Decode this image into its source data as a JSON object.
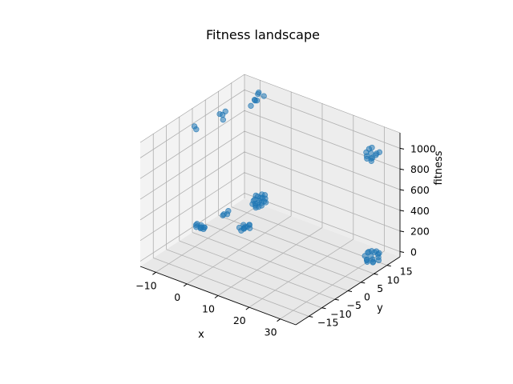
{
  "chart_data": {
    "type": "scatter",
    "title": "Fitness landscape",
    "xlabel": "x",
    "ylabel": "y",
    "zlabel": "fitness",
    "xlim": [
      -15,
      35
    ],
    "ylim": [
      -20,
      20
    ],
    "zlim": [
      -50,
      1150
    ],
    "xticks": [
      -10,
      0,
      10,
      20,
      30
    ],
    "yticks": [
      -15,
      -10,
      -5,
      0,
      5,
      10,
      15
    ],
    "zticks": [
      0,
      200,
      400,
      600,
      800,
      1000
    ],
    "xtick_labels": [
      "−10",
      "0",
      "10",
      "20",
      "30"
    ],
    "ytick_labels": [
      "−15",
      "−10",
      "−5",
      "0",
      "5",
      "10",
      "15"
    ],
    "ztick_labels": [
      "0",
      "200",
      "400",
      "600",
      "800",
      "1000"
    ],
    "grid": true,
    "marker_color": "#1f77b4",
    "marker_alpha": 0.55,
    "points": [
      [
        -10.5,
        18.5,
        980
      ],
      [
        -10,
        19.5,
        1040
      ],
      [
        -9,
        18,
        1060
      ],
      [
        -8.5,
        17,
        1020
      ],
      [
        -9.5,
        17.5,
        1000
      ],
      [
        -7.5,
        18.5,
        1050
      ],
      [
        -10,
        16.5,
        960
      ],
      [
        -11,
        7,
        970
      ],
      [
        -12,
        8,
        990
      ],
      [
        -12.5,
        7.5,
        1000
      ],
      [
        -11.5,
        8.5,
        1020
      ],
      [
        -13.5,
        -1,
        1010
      ],
      [
        -12.5,
        -1.5,
        1000
      ],
      [
        31.5,
        13,
        1030
      ],
      [
        32.5,
        14,
        1020
      ],
      [
        31,
        12,
        1010
      ],
      [
        30.5,
        13.5,
        1050
      ],
      [
        33,
        14.5,
        1030
      ],
      [
        32,
        12.5,
        990
      ],
      [
        31.5,
        11.5,
        1000
      ],
      [
        30,
        13,
        1020
      ],
      [
        33.5,
        12.5,
        1040
      ],
      [
        31,
        14,
        1060
      ],
      [
        32,
        13,
        990
      ],
      [
        32.5,
        12,
        980
      ],
      [
        -8,
        18.5,
        60
      ],
      [
        -9,
        19,
        40
      ],
      [
        -7.5,
        17.5,
        30
      ],
      [
        -8.5,
        17.5,
        20
      ],
      [
        -9.5,
        18.5,
        55
      ],
      [
        -7,
        18,
        45
      ],
      [
        -8,
        19.5,
        70
      ],
      [
        -9,
        17,
        15
      ],
      [
        -10,
        18,
        30
      ],
      [
        -8.5,
        16.5,
        10
      ],
      [
        -7.5,
        19,
        50
      ],
      [
        -8.5,
        18,
        35
      ],
      [
        -9,
        19.5,
        65
      ],
      [
        -10,
        17.5,
        25
      ],
      [
        -7,
        17,
        20
      ],
      [
        -6.5,
        18,
        40
      ],
      [
        -8,
        16,
        5
      ],
      [
        -9.5,
        16.5,
        15
      ],
      [
        -7.5,
        16.5,
        10
      ],
      [
        -10.5,
        19,
        45
      ],
      [
        -12,
        -0.5,
        40
      ],
      [
        -13,
        -1,
        60
      ],
      [
        -11.5,
        0.5,
        30
      ],
      [
        -12.5,
        0.5,
        20
      ],
      [
        -13.5,
        0,
        50
      ],
      [
        -11,
        -0.5,
        35
      ],
      [
        -12,
        1,
        15
      ],
      [
        -13,
        1,
        25
      ],
      [
        -11.5,
        -1,
        45
      ],
      [
        -12.5,
        -1.5,
        55
      ],
      [
        -3,
        5.5,
        30
      ],
      [
        -4,
        6.5,
        40
      ],
      [
        -3.5,
        6,
        20
      ],
      [
        -2.5,
        7,
        50
      ],
      [
        -4.5,
        5.5,
        25
      ],
      [
        -3,
        7.5,
        35
      ],
      [
        -4,
        7,
        10
      ],
      [
        -2.5,
        6,
        45
      ],
      [
        -3.5,
        5,
        15
      ],
      [
        -2,
        6.5,
        30
      ],
      [
        -11.5,
        7.5,
        30
      ],
      [
        -10.5,
        8,
        45
      ],
      [
        -12,
        8.5,
        20
      ],
      [
        -11,
        9,
        55
      ],
      [
        33,
        14,
        50
      ],
      [
        31.5,
        13,
        30
      ],
      [
        32.5,
        12.5,
        20
      ],
      [
        30.5,
        14.5,
        45
      ],
      [
        31,
        12,
        10
      ],
      [
        33.5,
        13.5,
        35
      ],
      [
        32,
        14.5,
        60
      ],
      [
        30,
        12.5,
        25
      ],
      [
        31.5,
        11.5,
        15
      ],
      [
        32.5,
        15,
        40
      ],
      [
        33,
        12,
        5
      ],
      [
        30.5,
        13,
        55
      ],
      [
        31,
        15,
        30
      ],
      [
        32,
        11,
        15
      ],
      [
        34,
        13,
        20
      ],
      [
        33.5,
        11.5,
        25
      ],
      [
        30,
        14,
        40
      ]
    ]
  }
}
